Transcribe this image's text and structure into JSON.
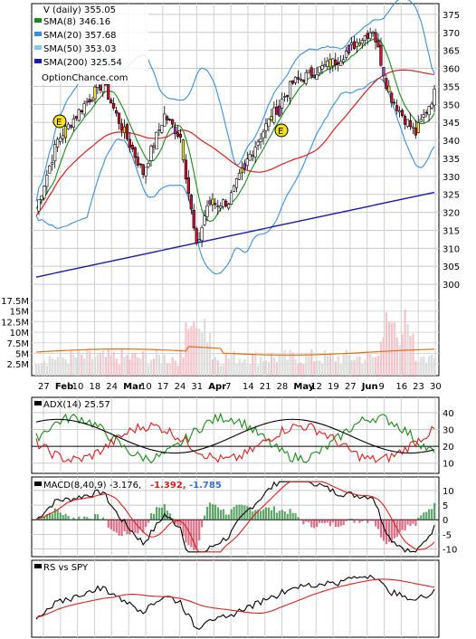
{
  "chart_data": [
    {
      "type": "candlestick",
      "title": "V (daily) 355.05",
      "watermark": "OptionChance.com",
      "legend": [
        {
          "label": "SMA(8) 346.16",
          "color": "#1a8a1a"
        },
        {
          "label": "SMA(20) 357.68",
          "color": "#3a8fd8"
        },
        {
          "label": "SMA(50) 353.03",
          "color": "#8cc7ee"
        },
        {
          "label": "SMA(200) 325.54",
          "color": "#1a1aa8"
        }
      ],
      "y_ticks": [
        "375",
        "370",
        "365",
        "360",
        "355",
        "350",
        "345",
        "340",
        "335",
        "330",
        "325",
        "320",
        "315",
        "310",
        "305",
        "300"
      ],
      "ylim": [
        296,
        378
      ],
      "volume_ticks": [
        "17.5M",
        "15M",
        "12.5M",
        "10M",
        "7.5M",
        "5M",
        "2.5M"
      ],
      "x_ticks": [
        {
          "label": "27",
          "bold": false
        },
        {
          "label": "Feb",
          "bold": true
        },
        {
          "label": "10",
          "bold": false
        },
        {
          "label": "18",
          "bold": false
        },
        {
          "label": "24",
          "bold": false
        },
        {
          "label": "Mar",
          "bold": true
        },
        {
          "label": "10",
          "bold": false
        },
        {
          "label": "17",
          "bold": false
        },
        {
          "label": "24",
          "bold": false
        },
        {
          "label": "31",
          "bold": false
        },
        {
          "label": "Apr",
          "bold": true
        },
        {
          "label": "7",
          "bold": false
        },
        {
          "label": "14",
          "bold": false
        },
        {
          "label": "21",
          "bold": false
        },
        {
          "label": "28",
          "bold": false
        },
        {
          "label": "May",
          "bold": true
        },
        {
          "label": "12",
          "bold": false
        },
        {
          "label": "19",
          "bold": false
        },
        {
          "label": "27",
          "bold": false
        },
        {
          "label": "Jun",
          "bold": true
        },
        {
          "label": "9",
          "bold": false
        },
        {
          "label": "16",
          "bold": false
        },
        {
          "label": "23",
          "bold": false
        },
        {
          "label": "30",
          "bold": false
        }
      ],
      "earnings_markers": [
        "E",
        "E"
      ]
    },
    {
      "type": "line",
      "title": "ADX(14) 25.57",
      "y_ticks": [
        "40",
        "30",
        "20",
        "10"
      ],
      "ylim": [
        5,
        48
      ]
    },
    {
      "type": "line",
      "title": "MACD(8,40,9) -3.176,",
      "values": [
        {
          "label": "-1.392,",
          "color": "#d82020"
        },
        {
          "label": "-1.785",
          "color": "#3a6fd8"
        }
      ],
      "y_ticks": [
        "10",
        "5",
        "0",
        "-5",
        "-10"
      ],
      "ylim": [
        -12,
        14
      ]
    },
    {
      "type": "line",
      "title": "RS vs SPY"
    }
  ]
}
